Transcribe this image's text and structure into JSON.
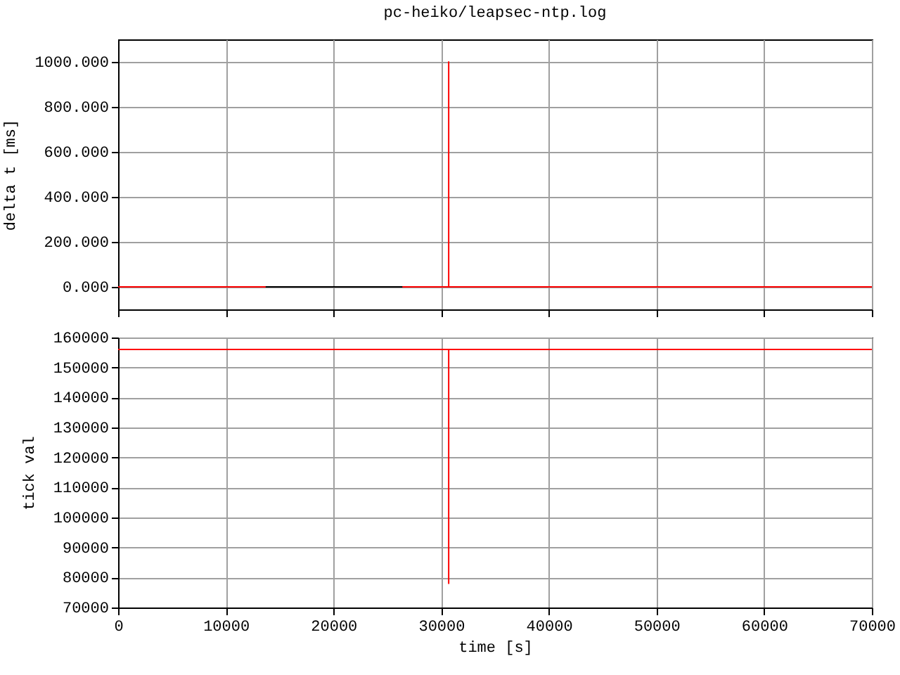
{
  "chart_data": [
    {
      "type": "line",
      "title": "pc-heiko/leapsec-ntp.log",
      "ylabel": "delta t [ms]",
      "xlim": [
        0,
        70000
      ],
      "xticks": [
        0,
        10000,
        20000,
        30000,
        40000,
        50000,
        60000,
        70000
      ],
      "ylim": [
        -100,
        1100
      ],
      "yticks": [
        {
          "value": 0,
          "label": "0.000"
        },
        {
          "value": 200,
          "label": "200.000"
        },
        {
          "value": 400,
          "label": "400.000"
        },
        {
          "value": 600,
          "label": "600.000"
        },
        {
          "value": 800,
          "label": "800.000"
        },
        {
          "value": 1000,
          "label": "1000.000"
        }
      ],
      "grid": true,
      "tick_labels": "y",
      "series": [
        {
          "color": "#ff0000",
          "x": [
            0,
            30700,
            30700,
            30700,
            70000
          ],
          "values": [
            0,
            0,
            1000,
            0,
            0
          ]
        },
        {
          "color": "#000000",
          "x": [
            13700,
            26400
          ],
          "values": [
            0,
            0
          ]
        }
      ]
    },
    {
      "type": "line",
      "xlabel": "time [s]",
      "ylabel": "tick val",
      "xlim": [
        0,
        70000
      ],
      "xticks": [
        0,
        10000,
        20000,
        30000,
        40000,
        50000,
        60000,
        70000
      ],
      "ylim": [
        70000,
        160000
      ],
      "yticks": [
        70000,
        80000,
        90000,
        100000,
        110000,
        120000,
        130000,
        140000,
        150000,
        160000
      ],
      "grid": true,
      "series": [
        {
          "color": "#ff0000",
          "x": [
            0,
            30700,
            30700,
            30700,
            70000
          ],
          "values": [
            156000,
            156000,
            78000,
            156000,
            156000
          ]
        }
      ]
    }
  ]
}
